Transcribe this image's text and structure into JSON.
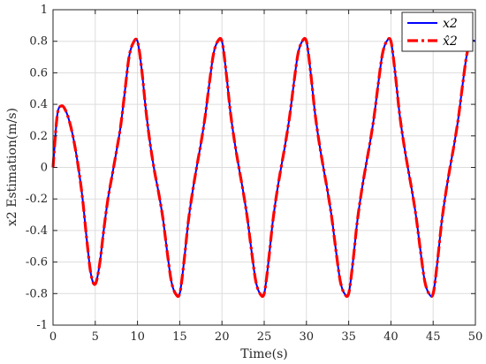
{
  "chart_data": {
    "type": "line",
    "xlabel": "Time(s)",
    "ylabel": "x2 Estimation(m/s)",
    "xlim": [
      0,
      50
    ],
    "ylim": [
      -1,
      1
    ],
    "xticks": [
      "0",
      "5",
      "10",
      "15",
      "20",
      "25",
      "30",
      "35",
      "40",
      "45",
      "50"
    ],
    "yticks": [
      "-1",
      "-0.8",
      "-0.6",
      "-0.4",
      "-0.2",
      "0",
      "0.2",
      "0.4",
      "0.6",
      "0.8",
      "1"
    ],
    "grid": true,
    "legend_position": "top-right",
    "x": [
      0,
      0.5,
      1,
      1.5,
      2,
      2.5,
      3,
      3.5,
      4,
      4.5,
      5,
      5.5,
      6,
      6.5,
      7,
      7.5,
      8,
      8.5,
      9,
      9.5,
      10,
      10.5,
      11,
      11.5,
      12,
      12.5,
      13,
      13.5,
      14,
      14.5,
      15,
      15.5,
      16,
      16.5,
      17,
      17.5,
      18,
      18.5,
      19,
      19.5,
      20,
      20.5,
      21,
      21.5,
      22,
      22.5,
      23,
      23.5,
      24,
      24.5,
      25,
      25.5,
      26,
      26.5,
      27,
      27.5,
      28,
      28.5,
      29,
      29.5,
      30,
      30.5,
      31,
      31.5,
      32,
      32.5,
      33,
      33.5,
      34,
      34.5,
      35,
      35.5,
      36,
      36.5,
      37,
      37.5,
      38,
      38.5,
      39,
      39.5,
      40,
      40.5,
      41,
      41.5,
      42,
      42.5,
      43,
      43.5,
      44,
      44.5,
      45,
      45.5,
      46,
      46.5,
      47,
      47.5,
      48,
      48.5,
      49,
      49.5,
      50
    ],
    "series": [
      {
        "name": "x2",
        "color": "#0000ff",
        "dash": "solid",
        "values": [
          0,
          0.33,
          0.39,
          0.36,
          0.28,
          0.16,
          0.0,
          -0.2,
          -0.46,
          -0.68,
          -0.74,
          -0.62,
          -0.4,
          -0.2,
          -0.05,
          0.1,
          0.26,
          0.48,
          0.7,
          0.79,
          0.8,
          0.62,
          0.36,
          0.15,
          -0.02,
          -0.16,
          -0.32,
          -0.53,
          -0.72,
          -0.8,
          -0.8,
          -0.6,
          -0.35,
          -0.16,
          -0.0,
          0.15,
          0.32,
          0.53,
          0.72,
          0.8,
          0.8,
          0.6,
          0.35,
          0.16,
          0.0,
          -0.15,
          -0.32,
          -0.53,
          -0.72,
          -0.8,
          -0.8,
          -0.6,
          -0.35,
          -0.16,
          0.0,
          0.15,
          0.32,
          0.53,
          0.72,
          0.8,
          0.8,
          0.6,
          0.35,
          0.16,
          0.0,
          -0.15,
          -0.32,
          -0.53,
          -0.72,
          -0.8,
          -0.8,
          -0.6,
          -0.35,
          -0.16,
          0.0,
          0.15,
          0.32,
          0.53,
          0.72,
          0.8,
          0.8,
          0.6,
          0.35,
          0.16,
          0.0,
          -0.15,
          -0.32,
          -0.53,
          -0.72,
          -0.8,
          -0.8,
          -0.6,
          -0.35,
          -0.16,
          0.0,
          0.15,
          0.32,
          0.53,
          0.72,
          0.8,
          0.8
        ]
      },
      {
        "name": "x̂2",
        "color": "#ff0000",
        "dash": "dashdot",
        "values": [
          0,
          0.33,
          0.39,
          0.36,
          0.28,
          0.16,
          0.0,
          -0.2,
          -0.46,
          -0.68,
          -0.74,
          -0.62,
          -0.4,
          -0.2,
          -0.05,
          0.1,
          0.26,
          0.48,
          0.7,
          0.79,
          0.8,
          0.62,
          0.36,
          0.15,
          -0.02,
          -0.16,
          -0.32,
          -0.53,
          -0.72,
          -0.8,
          -0.8,
          -0.6,
          -0.35,
          -0.16,
          -0.0,
          0.15,
          0.32,
          0.53,
          0.72,
          0.8,
          0.8,
          0.6,
          0.35,
          0.16,
          0.0,
          -0.15,
          -0.32,
          -0.53,
          -0.72,
          -0.8,
          -0.8,
          -0.6,
          -0.35,
          -0.16,
          0.0,
          0.15,
          0.32,
          0.53,
          0.72,
          0.8,
          0.8,
          0.6,
          0.35,
          0.16,
          0.0,
          -0.15,
          -0.32,
          -0.53,
          -0.72,
          -0.8,
          -0.8,
          -0.6,
          -0.35,
          -0.16,
          0.0,
          0.15,
          0.32,
          0.53,
          0.72,
          0.8,
          0.8,
          0.6,
          0.35,
          0.16,
          0.0,
          -0.15,
          -0.32,
          -0.53,
          -0.72,
          -0.8,
          -0.8,
          -0.6,
          -0.35,
          -0.16,
          0.0,
          0.15,
          0.32,
          0.53,
          0.72,
          0.8,
          0.8
        ]
      }
    ]
  }
}
